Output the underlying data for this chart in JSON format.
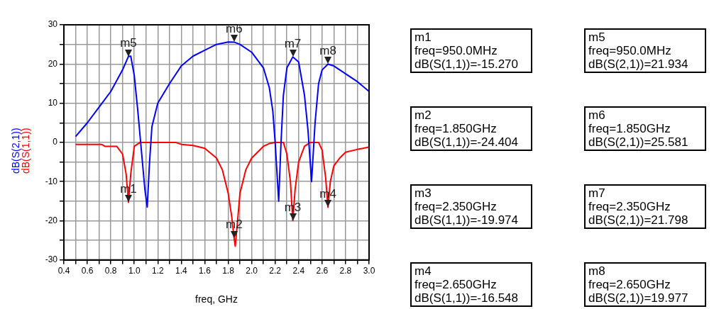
{
  "chart_data": {
    "type": "line",
    "xlabel": "freq, GHz",
    "xlim": [
      0.4,
      3.0
    ],
    "xticks": [
      0.4,
      {
        "value": 0.5,
        "label": null
      },
      0.6,
      {
        "value": 0.7,
        "label": null
      },
      0.8,
      {
        "value": 0.9,
        "label": null
      },
      {
        "value": 1.0,
        "label": "1.0"
      },
      {
        "value": 1.1,
        "label": null
      },
      1.2,
      {
        "value": 1.3,
        "label": null
      },
      1.4,
      {
        "value": 1.5,
        "label": null
      },
      1.6,
      {
        "value": 1.7,
        "label": null
      },
      1.8,
      {
        "value": 1.9,
        "label": null
      },
      {
        "value": 2.0,
        "label": "2.0"
      },
      {
        "value": 2.1,
        "label": null
      },
      2.2,
      {
        "value": 2.3,
        "label": null
      },
      2.4,
      {
        "value": 2.5,
        "label": null
      },
      2.6,
      {
        "value": 2.7,
        "label": null
      },
      2.8,
      {
        "value": 2.9,
        "label": null
      },
      {
        "value": 3.0,
        "label": "3.0"
      }
    ],
    "ylim": [
      -30,
      30
    ],
    "yticks": [
      -30,
      {
        "value": -25,
        "label": null
      },
      -20,
      {
        "value": -15,
        "label": null
      },
      -10,
      {
        "value": -5,
        "label": null
      },
      0,
      {
        "value": 5,
        "label": null
      },
      10,
      {
        "value": 15,
        "label": null
      },
      20,
      {
        "value": 25,
        "label": null
      },
      30
    ],
    "grid": true,
    "legend": false,
    "marker": "none",
    "line_style": "solid",
    "series": [
      {
        "name": "dB(S(2,1))",
        "color": "#0000ff",
        "x": [
          0.5,
          0.6,
          0.7,
          0.8,
          0.9,
          0.95,
          0.97,
          1.0,
          1.03,
          1.06,
          1.09,
          1.11,
          1.13,
          1.15,
          1.2,
          1.3,
          1.4,
          1.5,
          1.6,
          1.7,
          1.8,
          1.85,
          1.9,
          2.0,
          2.1,
          2.15,
          2.18,
          2.2,
          2.23,
          2.25,
          2.27,
          2.3,
          2.35,
          2.4,
          2.45,
          2.48,
          2.51,
          2.54,
          2.57,
          2.6,
          2.65,
          2.7,
          2.8,
          2.9,
          3.0
        ],
        "values": [
          1.5,
          5,
          9,
          13,
          18.5,
          21.934,
          22,
          17,
          8,
          -2,
          -12,
          -16.5,
          -5,
          4,
          10,
          15,
          19.5,
          22,
          23.5,
          25,
          25.6,
          25.581,
          25,
          23,
          19,
          14,
          8,
          0,
          -15,
          0,
          12,
          19,
          21.798,
          20.5,
          12,
          3,
          -10,
          5,
          15,
          18.5,
          19.977,
          19.5,
          17.5,
          15.5,
          13
        ]
      },
      {
        "name": "dB(S(1,1))",
        "color": "#ff0000",
        "x": [
          0.5,
          0.72,
          0.75,
          0.85,
          0.9,
          0.93,
          0.95,
          0.97,
          1.0,
          1.05,
          1.35,
          1.4,
          1.5,
          1.6,
          1.7,
          1.75,
          1.8,
          1.83,
          1.85,
          1.86,
          1.88,
          1.9,
          1.95,
          2.0,
          2.05,
          2.1,
          2.15,
          2.2,
          2.27,
          2.3,
          2.33,
          2.35,
          2.37,
          2.4,
          2.45,
          2.5,
          2.57,
          2.6,
          2.63,
          2.65,
          2.67,
          2.7,
          2.75,
          2.8,
          2.9,
          3.0
        ],
        "values": [
          -0.5,
          -0.5,
          -1,
          -1,
          -3,
          -8,
          -15.27,
          -8,
          -1,
          0,
          0,
          -0.5,
          -0.8,
          -1.5,
          -4,
          -7,
          -13,
          -19,
          -24.404,
          -26.5,
          -20,
          -13,
          -7,
          -4,
          -2.5,
          -1,
          -0.3,
          0,
          0,
          -3,
          -10,
          -19.974,
          -12,
          -5,
          -1,
          0,
          0,
          -2,
          -9,
          -16.548,
          -10,
          -6,
          -4,
          -2.5,
          -1.8,
          -1.2
        ]
      }
    ],
    "annotations": [
      {
        "text": "m1",
        "x": 0.95,
        "y": -15.27
      },
      {
        "text": "m2",
        "x": 1.85,
        "y": -24.404
      },
      {
        "text": "m3",
        "x": 2.35,
        "y": -19.974
      },
      {
        "text": "m4",
        "x": 2.65,
        "y": -16.548
      },
      {
        "text": "m5",
        "x": 0.95,
        "y": 21.934
      },
      {
        "text": "m6",
        "x": 1.85,
        "y": 25.581
      },
      {
        "text": "m7",
        "x": 2.35,
        "y": 21.798
      },
      {
        "text": "m8",
        "x": 2.65,
        "y": 19.977
      },
      "m1\nfreq=950.0MHz\ndB(S(1,1))=-15.270",
      "m2\nfreq=1.850GHz\ndB(S(1,1))=-24.404",
      "m3\nfreq=2.350GHz\ndB(S(1,1))=-19.974",
      "m4\nfreq=2.650GHz\ndB(S(1,1))=-16.548",
      "m5\nfreq=950.0MHz\ndB(S(2,1))=21.934",
      "m6\nfreq=1.850GHz\ndB(S(2,1))=25.581",
      "m7\nfreq=2.350GHz\ndB(S(2,1))=21.798",
      "m8\nfreq=2.650GHz\ndB(S(2,1))=19.977"
    ]
  }
}
